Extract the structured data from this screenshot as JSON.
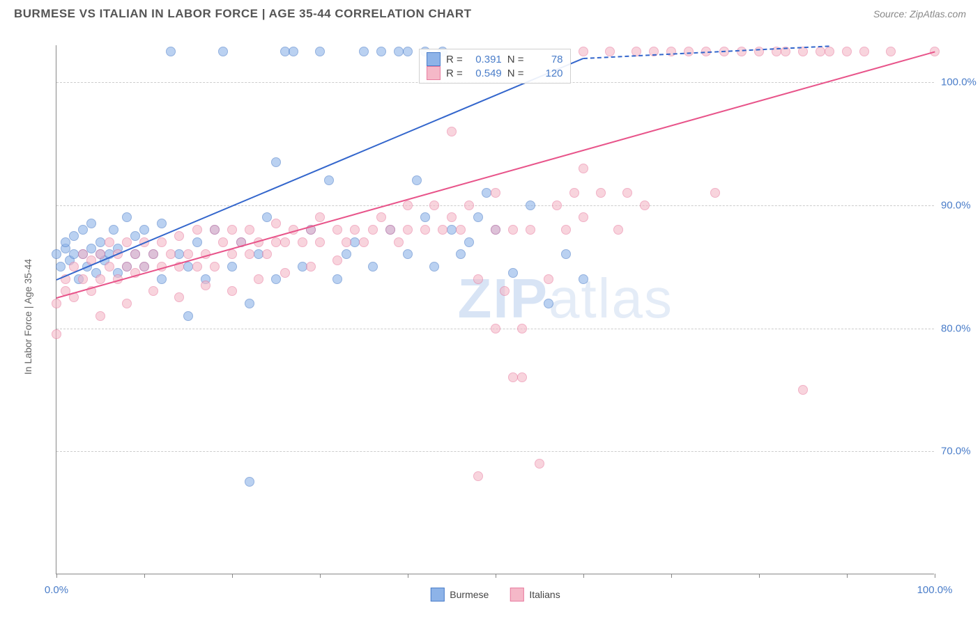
{
  "header": {
    "title": "BURMESE VS ITALIAN IN LABOR FORCE | AGE 35-44 CORRELATION CHART",
    "source": "Source: ZipAtlas.com"
  },
  "chart": {
    "type": "scatter",
    "y_axis_label": "In Labor Force | Age 35-44",
    "x_range": [
      0,
      100
    ],
    "y_range": [
      60,
      103
    ],
    "x_ticks": [
      0,
      10,
      20,
      30,
      40,
      50,
      60,
      70,
      80,
      90,
      100
    ],
    "x_tick_labels": {
      "0": "0.0%",
      "100": "100.0%"
    },
    "y_ticks": [
      70,
      80,
      90,
      100
    ],
    "y_tick_labels": {
      "70": "70.0%",
      "80": "80.0%",
      "90": "90.0%",
      "100": "100.0%"
    },
    "grid_color": "#cccccc",
    "background_color": "#ffffff",
    "point_radius": 7,
    "series": [
      {
        "name": "Burmese",
        "color_fill": "#8db3e8",
        "color_stroke": "#4a7dc9",
        "r": "0.391",
        "n": "78",
        "trend": {
          "x1": 0,
          "y1": 84,
          "x2": 60,
          "y2": 102,
          "dash_from_x": 60,
          "dash_to_x": 88,
          "dash_to_y": 103
        },
        "points": [
          [
            0,
            86
          ],
          [
            0.5,
            85
          ],
          [
            1,
            86.5
          ],
          [
            1,
            87
          ],
          [
            1.5,
            85.5
          ],
          [
            2,
            86
          ],
          [
            2,
            87.5
          ],
          [
            2.5,
            84
          ],
          [
            3,
            86
          ],
          [
            3,
            88
          ],
          [
            3.5,
            85
          ],
          [
            4,
            86.5
          ],
          [
            4,
            88.5
          ],
          [
            4.5,
            84.5
          ],
          [
            5,
            86
          ],
          [
            5,
            87
          ],
          [
            5.5,
            85.5
          ],
          [
            6,
            86
          ],
          [
            6.5,
            88
          ],
          [
            7,
            84.5
          ],
          [
            7,
            86.5
          ],
          [
            8,
            85
          ],
          [
            8,
            89
          ],
          [
            9,
            86
          ],
          [
            9,
            87.5
          ],
          [
            10,
            85
          ],
          [
            10,
            88
          ],
          [
            11,
            86
          ],
          [
            12,
            84
          ],
          [
            12,
            88.5
          ],
          [
            13,
            102.5
          ],
          [
            14,
            86
          ],
          [
            15,
            81
          ],
          [
            15,
            85
          ],
          [
            16,
            87
          ],
          [
            17,
            84
          ],
          [
            18,
            88
          ],
          [
            19,
            102.5
          ],
          [
            20,
            85
          ],
          [
            21,
            87
          ],
          [
            22,
            82
          ],
          [
            22,
            67.5
          ],
          [
            23,
            86
          ],
          [
            24,
            89
          ],
          [
            25,
            84
          ],
          [
            25,
            93.5
          ],
          [
            26,
            102.5
          ],
          [
            27,
            102.5
          ],
          [
            28,
            85
          ],
          [
            29,
            88
          ],
          [
            30,
            102.5
          ],
          [
            31,
            92
          ],
          [
            32,
            84
          ],
          [
            33,
            86
          ],
          [
            34,
            87
          ],
          [
            35,
            102.5
          ],
          [
            36,
            85
          ],
          [
            37,
            102.5
          ],
          [
            38,
            88
          ],
          [
            39,
            102.5
          ],
          [
            40,
            86
          ],
          [
            41,
            92
          ],
          [
            42,
            89
          ],
          [
            43,
            85
          ],
          [
            44,
            102.5
          ],
          [
            45,
            88
          ],
          [
            46,
            86
          ],
          [
            47,
            87
          ],
          [
            48,
            89
          ],
          [
            49,
            91
          ],
          [
            50,
            88
          ],
          [
            52,
            84.5
          ],
          [
            54,
            90
          ],
          [
            56,
            82
          ],
          [
            58,
            86
          ],
          [
            60,
            84
          ],
          [
            40,
            102.5
          ],
          [
            42,
            102.5
          ]
        ]
      },
      {
        "name": "Italians",
        "color_fill": "#f5b8c8",
        "color_stroke": "#e87ca0",
        "r": "0.549",
        "n": "120",
        "trend": {
          "x1": 0,
          "y1": 82.5,
          "x2": 100,
          "y2": 102.5
        },
        "points": [
          [
            0,
            82
          ],
          [
            0,
            79.5
          ],
          [
            1,
            83
          ],
          [
            1,
            84
          ],
          [
            2,
            82.5
          ],
          [
            2,
            85
          ],
          [
            3,
            84
          ],
          [
            3,
            86
          ],
          [
            4,
            83
          ],
          [
            4,
            85.5
          ],
          [
            5,
            84
          ],
          [
            5,
            86
          ],
          [
            6,
            85
          ],
          [
            6,
            87
          ],
          [
            7,
            84
          ],
          [
            7,
            86
          ],
          [
            8,
            85
          ],
          [
            8,
            87
          ],
          [
            9,
            84.5
          ],
          [
            9,
            86
          ],
          [
            10,
            85
          ],
          [
            10,
            87
          ],
          [
            11,
            86
          ],
          [
            12,
            85
          ],
          [
            12,
            87
          ],
          [
            13,
            86
          ],
          [
            14,
            85
          ],
          [
            14,
            87.5
          ],
          [
            15,
            86
          ],
          [
            16,
            85
          ],
          [
            16,
            88
          ],
          [
            17,
            86
          ],
          [
            18,
            85
          ],
          [
            18,
            88
          ],
          [
            19,
            87
          ],
          [
            20,
            86
          ],
          [
            20,
            88
          ],
          [
            21,
            87
          ],
          [
            22,
            86
          ],
          [
            22,
            88
          ],
          [
            23,
            87
          ],
          [
            24,
            86
          ],
          [
            25,
            87
          ],
          [
            25,
            88.5
          ],
          [
            26,
            87
          ],
          [
            27,
            88
          ],
          [
            28,
            87
          ],
          [
            29,
            88
          ],
          [
            30,
            87
          ],
          [
            30,
            89
          ],
          [
            32,
            88
          ],
          [
            33,
            87
          ],
          [
            34,
            88
          ],
          [
            35,
            87
          ],
          [
            36,
            88
          ],
          [
            37,
            89
          ],
          [
            38,
            88
          ],
          [
            39,
            87
          ],
          [
            40,
            88
          ],
          [
            40,
            90
          ],
          [
            42,
            88
          ],
          [
            43,
            90
          ],
          [
            44,
            88
          ],
          [
            45,
            89
          ],
          [
            45,
            96
          ],
          [
            46,
            88
          ],
          [
            47,
            90
          ],
          [
            48,
            84
          ],
          [
            48,
            68
          ],
          [
            50,
            88
          ],
          [
            50,
            91
          ],
          [
            50,
            80
          ],
          [
            51,
            83
          ],
          [
            52,
            88
          ],
          [
            52,
            76
          ],
          [
            53,
            80
          ],
          [
            53,
            76
          ],
          [
            54,
            88
          ],
          [
            55,
            69
          ],
          [
            56,
            84
          ],
          [
            57,
            90
          ],
          [
            58,
            88
          ],
          [
            59,
            91
          ],
          [
            60,
            89
          ],
          [
            60,
            102.5
          ],
          [
            60,
            93
          ],
          [
            62,
            91
          ],
          [
            63,
            102.5
          ],
          [
            64,
            88
          ],
          [
            65,
            91
          ],
          [
            66,
            102.5
          ],
          [
            67,
            90
          ],
          [
            68,
            102.5
          ],
          [
            70,
            102.5
          ],
          [
            72,
            102.5
          ],
          [
            74,
            102.5
          ],
          [
            75,
            91
          ],
          [
            76,
            102.5
          ],
          [
            78,
            102.5
          ],
          [
            80,
            102.5
          ],
          [
            82,
            102.5
          ],
          [
            83,
            102.5
          ],
          [
            85,
            75
          ],
          [
            85,
            102.5
          ],
          [
            87,
            102.5
          ],
          [
            88,
            102.5
          ],
          [
            90,
            102.5
          ],
          [
            92,
            102.5
          ],
          [
            95,
            102.5
          ],
          [
            100,
            102.5
          ],
          [
            5,
            81
          ],
          [
            8,
            82
          ],
          [
            11,
            83
          ],
          [
            14,
            82.5
          ],
          [
            17,
            83.5
          ],
          [
            20,
            83
          ],
          [
            23,
            84
          ],
          [
            26,
            84.5
          ],
          [
            29,
            85
          ],
          [
            32,
            85.5
          ]
        ]
      }
    ],
    "legend_stats_labels": {
      "r": "R =",
      "n": "N ="
    },
    "bottom_legend": [
      "Burmese",
      "Italians"
    ],
    "watermark": {
      "bold": "ZIP",
      "thin": "atlas"
    }
  }
}
